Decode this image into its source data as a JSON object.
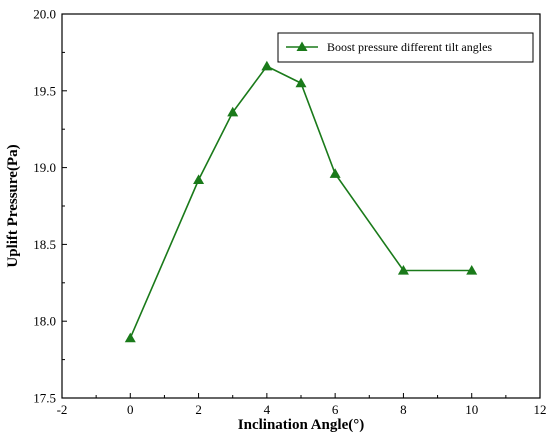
{
  "chart_data": {
    "type": "line",
    "xlabel": "Inclination Angle(°)",
    "ylabel": "Uplift Pressure(Pa)",
    "xlim": [
      -2,
      12
    ],
    "ylim": [
      17.5,
      20.0
    ],
    "xticks": [
      -2,
      0,
      2,
      4,
      6,
      8,
      10,
      12
    ],
    "xtick_labels": [
      "-2",
      "0",
      "2",
      "4",
      "6",
      "8",
      "10",
      "12"
    ],
    "yticks": [
      17.5,
      18.0,
      18.5,
      19.0,
      19.5,
      20.0
    ],
    "ytick_labels": [
      "17.5",
      "18.0",
      "18.5",
      "19.0",
      "19.5",
      "20.0"
    ],
    "grid": false,
    "legend_position": "top-right",
    "series": [
      {
        "name": "Boost pressure different tilt angles",
        "color": "#1a7a1a",
        "marker": "triangle",
        "x": [
          0,
          2,
          3,
          4,
          5,
          6,
          8,
          10
        ],
        "y": [
          17.89,
          18.92,
          19.36,
          19.66,
          19.55,
          18.96,
          18.33,
          18.33
        ]
      }
    ]
  }
}
